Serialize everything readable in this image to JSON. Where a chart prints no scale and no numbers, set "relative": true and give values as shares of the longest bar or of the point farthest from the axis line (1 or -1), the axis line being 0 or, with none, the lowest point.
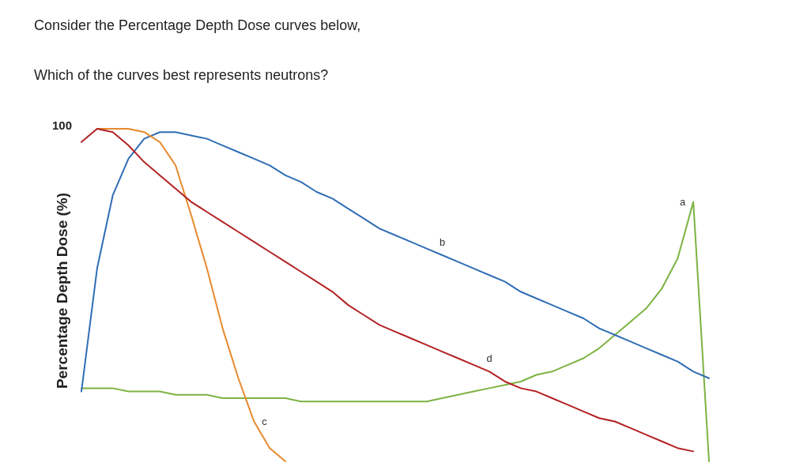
{
  "chart_data": {
    "type": "line",
    "title": "Consider the Percentage Depth Dose curves below,",
    "subtitle": "Which of the curves best represents neutrons?",
    "ylabel": "Percentage Depth Dose (%)",
    "relative": true,
    "annotations": [
      "100"
    ],
    "grid": false,
    "legend": false,
    "marker": "none",
    "categories": [
      null,
      null,
      null,
      null,
      null,
      null,
      null,
      null,
      null,
      null,
      null,
      null,
      null,
      null,
      null,
      null,
      null,
      null,
      null,
      null,
      null,
      null,
      null,
      null,
      null,
      null,
      null,
      null,
      null,
      null,
      null,
      null,
      null,
      null,
      null,
      null,
      null,
      null,
      null,
      null,
      null
    ],
    "series": [
      {
        "name": "a",
        "color": "#7cb342",
        "values": [
          0.22,
          0.22,
          0.22,
          0.21,
          0.21,
          0.21,
          0.2,
          0.2,
          0.2,
          0.19,
          0.19,
          0.19,
          0.19,
          0.19,
          0.18,
          0.18,
          0.18,
          0.18,
          0.18,
          0.18,
          0.18,
          0.18,
          0.18,
          0.19,
          0.2,
          0.21,
          0.22,
          0.23,
          0.24,
          0.26,
          0.27,
          0.29,
          0.31,
          0.34,
          0.38,
          0.42,
          0.46,
          0.52,
          0.61,
          0.78,
          0
        ]
      },
      {
        "name": "b",
        "color": "#2f6db5",
        "values": [
          0.21,
          0.58,
          0.8,
          0.91,
          0.97,
          0.99,
          0.99,
          0.98,
          0.97,
          0.95,
          0.93,
          0.91,
          0.89,
          0.86,
          0.84,
          0.81,
          0.79,
          0.76,
          0.73,
          0.7,
          0.68,
          0.66,
          0.64,
          0.62,
          0.6,
          0.58,
          0.56,
          0.54,
          0.51,
          0.49,
          0.47,
          0.45,
          0.43,
          0.4,
          0.38,
          0.36,
          0.34,
          0.32,
          0.3,
          0.27,
          0.25
        ]
      },
      {
        "name": "c",
        "color": "#e8892e",
        "values": [
          null,
          1,
          1,
          1,
          0.99,
          0.96,
          0.89,
          0.74,
          0.58,
          0.4,
          0.25,
          0.12,
          0.04,
          0,
          null,
          null,
          null,
          null,
          null,
          null,
          null,
          null,
          null,
          null,
          null,
          null,
          null,
          null,
          null,
          null,
          null,
          null,
          null,
          null,
          null,
          null,
          null,
          null,
          null,
          null,
          null
        ]
      },
      {
        "name": "d",
        "color": "#b22222",
        "values": [
          0.96,
          1,
          0.99,
          0.95,
          0.9,
          0.86,
          0.82,
          0.78,
          0.75,
          0.72,
          0.69,
          0.66,
          0.63,
          0.6,
          0.57,
          0.54,
          0.51,
          0.47,
          0.44,
          0.41,
          0.39,
          0.37,
          0.35,
          0.33,
          0.31,
          0.29,
          0.27,
          0.24,
          0.22,
          0.21,
          0.19,
          0.17,
          0.15,
          0.13,
          0.12,
          0.1,
          0.08,
          0.06,
          0.04,
          0.03,
          null
        ]
      }
    ]
  }
}
